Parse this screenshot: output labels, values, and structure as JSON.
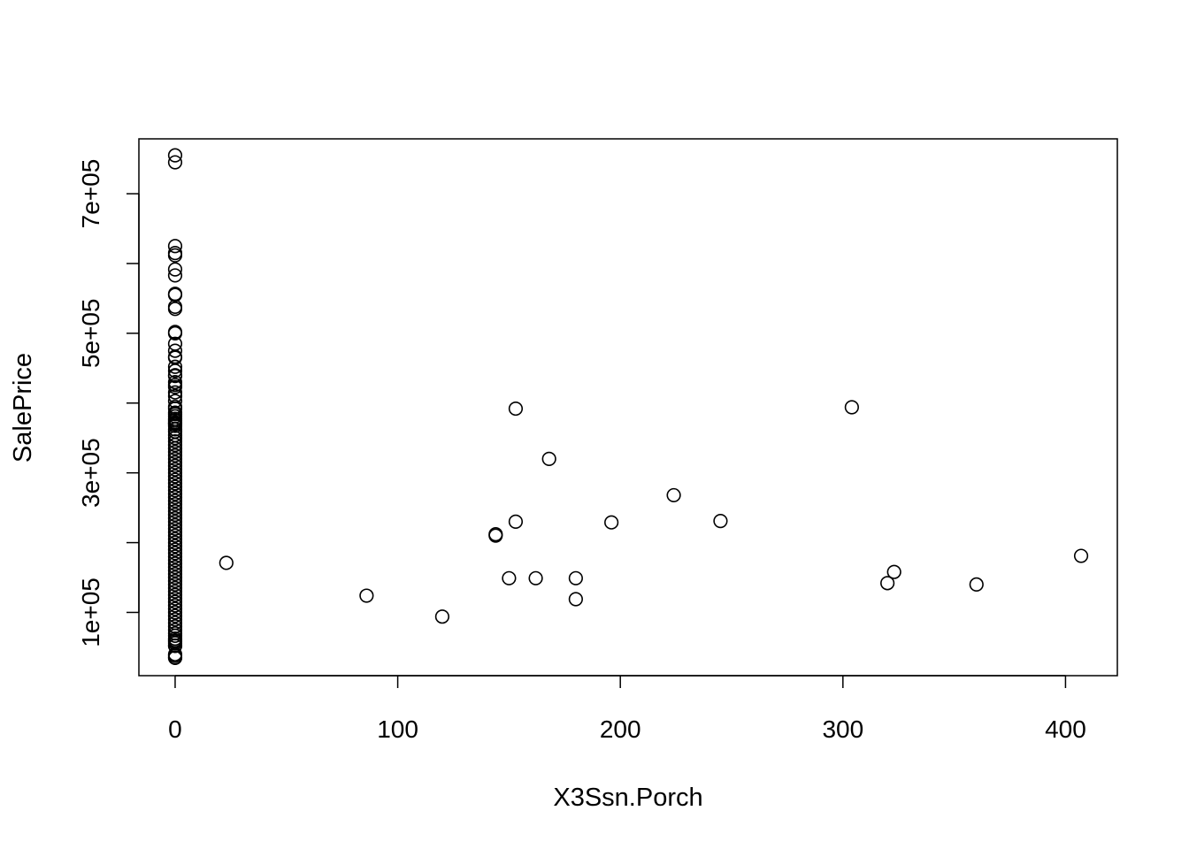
{
  "chart_data": {
    "type": "scatter",
    "title": "",
    "xlabel": "X3Ssn.Porch",
    "ylabel": "SalePrice",
    "xlim": [
      -16.28,
      423.28
    ],
    "ylim": [
      9350,
      778650
    ],
    "x_ticks": [
      0,
      100,
      200,
      300,
      400
    ],
    "x_tick_labels": [
      "0",
      "100",
      "200",
      "300",
      "400"
    ],
    "y_ticks": [
      100000,
      200000,
      300000,
      400000,
      500000,
      600000,
      700000
    ],
    "y_tick_labels": [
      "1e+05",
      "",
      "3e+05",
      "",
      "5e+05",
      "",
      "7e+05"
    ],
    "grid": false,
    "legend": "none",
    "marker": "open-circle",
    "x0_y_values": [
      755000,
      745000,
      625000,
      615000,
      611657,
      591587,
      582933,
      556581,
      555000,
      538000,
      535000,
      501837,
      500000,
      485000,
      475000,
      466500,
      465000,
      451950,
      446261,
      440000,
      438780,
      430000,
      426000,
      423000,
      415298,
      410000,
      402861,
      394617,
      392000,
      386250,
      383970,
      381000,
      377426,
      375000,
      372500,
      370878,
      369900,
      367294,
      362500,
      359100,
      354000,
      350000,
      345000,
      340000,
      335000,
      330000,
      325000,
      320000,
      315000,
      310000,
      305000,
      300000,
      295000,
      290000,
      285000,
      280000,
      275000,
      270000,
      265000,
      260000,
      255000,
      250000,
      245000,
      240000,
      235000,
      230000,
      225000,
      220000,
      215000,
      210000,
      205000,
      200000,
      195000,
      190000,
      185000,
      180000,
      175000,
      170000,
      165000,
      160000,
      155000,
      150000,
      145000,
      140000,
      135000,
      130000,
      125000,
      120000,
      115000,
      110000,
      105000,
      100000,
      95000,
      90000,
      85000,
      80000,
      75000,
      70000,
      66500,
      62383,
      60000,
      58500,
      55993,
      52500,
      52000,
      40000,
      37900,
      35311,
      34900
    ],
    "points": [
      {
        "x": 23,
        "y": 171000
      },
      {
        "x": 86,
        "y": 124000
      },
      {
        "x": 120,
        "y": 94000
      },
      {
        "x": 144,
        "y": 210000
      },
      {
        "x": 144,
        "y": 212000
      },
      {
        "x": 150,
        "y": 149000
      },
      {
        "x": 153,
        "y": 392000
      },
      {
        "x": 153,
        "y": 230000
      },
      {
        "x": 162,
        "y": 149000
      },
      {
        "x": 168,
        "y": 320000
      },
      {
        "x": 180,
        "y": 149000
      },
      {
        "x": 180,
        "y": 119000
      },
      {
        "x": 196,
        "y": 229000
      },
      {
        "x": 224,
        "y": 268000
      },
      {
        "x": 245,
        "y": 231000
      },
      {
        "x": 304,
        "y": 394000
      },
      {
        "x": 320,
        "y": 142000
      },
      {
        "x": 323,
        "y": 158000
      },
      {
        "x": 360,
        "y": 140000
      },
      {
        "x": 407,
        "y": 181000
      }
    ]
  }
}
